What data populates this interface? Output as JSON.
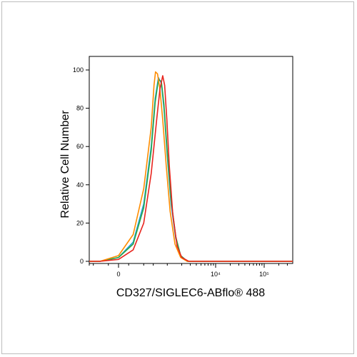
{
  "chart_data": {
    "type": "line",
    "title": "",
    "xlabel": "CD327/SIGLEC6-ABflo® 488",
    "ylabel": "Relative Cell Number",
    "x_scale": "biexponential",
    "x_tick_labels": [
      {
        "value": 0,
        "label": "0"
      },
      {
        "value": 10000,
        "label": "10⁴"
      },
      {
        "value": 100000,
        "label": "10⁵"
      }
    ],
    "ylim": [
      0,
      100
    ],
    "y_ticks": [
      0,
      20,
      40,
      60,
      80,
      100
    ],
    "grid": false,
    "series": [
      {
        "color": "#1f9ad6",
        "points": [
          [
            -1000,
            0
          ],
          [
            -200,
            0
          ],
          [
            0,
            2
          ],
          [
            150,
            10
          ],
          [
            300,
            30
          ],
          [
            450,
            60
          ],
          [
            550,
            85
          ],
          [
            650,
            96
          ],
          [
            750,
            93
          ],
          [
            850,
            80
          ],
          [
            1000,
            55
          ],
          [
            1200,
            30
          ],
          [
            1500,
            12
          ],
          [
            1900,
            3
          ],
          [
            2600,
            0
          ],
          [
            10000,
            0
          ],
          [
            600000,
            0
          ]
        ]
      },
      {
        "color": "#2aa84a",
        "points": [
          [
            -1000,
            0
          ],
          [
            -200,
            0
          ],
          [
            0,
            2
          ],
          [
            150,
            9
          ],
          [
            300,
            28
          ],
          [
            450,
            58
          ],
          [
            550,
            83
          ],
          [
            650,
            95
          ],
          [
            750,
            94
          ],
          [
            850,
            82
          ],
          [
            1000,
            57
          ],
          [
            1200,
            32
          ],
          [
            1500,
            13
          ],
          [
            1900,
            3
          ],
          [
            2600,
            0
          ],
          [
            10000,
            0
          ],
          [
            600000,
            0
          ]
        ]
      },
      {
        "color": "#ff8c00",
        "points": [
          [
            -1000,
            0
          ],
          [
            -200,
            0
          ],
          [
            0,
            3
          ],
          [
            150,
            14
          ],
          [
            300,
            38
          ],
          [
            450,
            70
          ],
          [
            520,
            92
          ],
          [
            560,
            99
          ],
          [
            620,
            98
          ],
          [
            700,
            90
          ],
          [
            800,
            74
          ],
          [
            950,
            50
          ],
          [
            1150,
            26
          ],
          [
            1450,
            9
          ],
          [
            1900,
            2
          ],
          [
            2600,
            0
          ],
          [
            10000,
            0
          ],
          [
            600000,
            0
          ]
        ]
      },
      {
        "color": "#e8251e",
        "points": [
          [
            -1000,
            0
          ],
          [
            -200,
            0
          ],
          [
            0,
            1
          ],
          [
            150,
            6
          ],
          [
            300,
            20
          ],
          [
            450,
            46
          ],
          [
            600,
            75
          ],
          [
            700,
            90
          ],
          [
            800,
            97
          ],
          [
            880,
            92
          ],
          [
            980,
            74
          ],
          [
            1100,
            50
          ],
          [
            1300,
            25
          ],
          [
            1600,
            8
          ],
          [
            2000,
            2
          ],
          [
            2800,
            0
          ],
          [
            10000,
            0
          ],
          [
            600000,
            0
          ]
        ]
      }
    ]
  }
}
